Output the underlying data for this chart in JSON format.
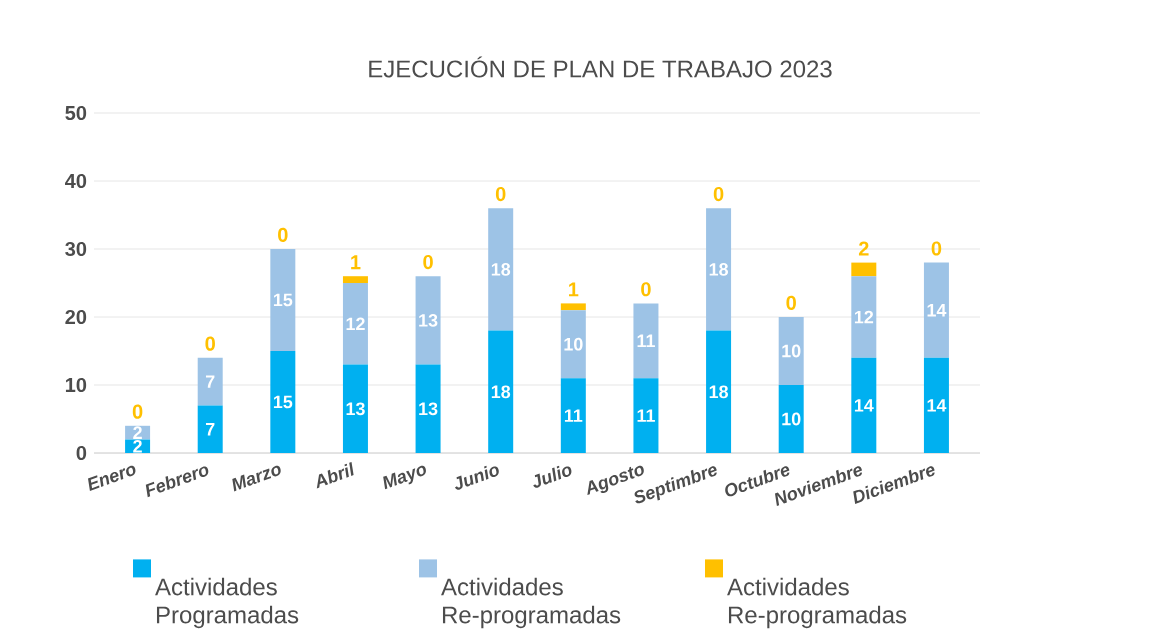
{
  "chart_data": {
    "type": "bar",
    "title": "EJECUCIÓN DE PLAN DE TRABAJO 2023",
    "categories": [
      "Enero",
      "Febrero",
      "Marzo",
      "Abril",
      "Mayo",
      "Junio",
      "Julio",
      "Agosto",
      "Septimbre",
      "Octubre",
      "Noviembre",
      "Diciembre"
    ],
    "stacked": true,
    "series": [
      {
        "name": "Actividades Programadas",
        "color": "#00b0f0",
        "values": [
          2,
          7,
          15,
          13,
          13,
          18,
          11,
          11,
          18,
          10,
          14,
          14
        ]
      },
      {
        "name": "Actividades Re-programadas",
        "color": "#9dc3e6",
        "values": [
          2,
          7,
          15,
          12,
          13,
          18,
          10,
          11,
          18,
          10,
          12,
          14
        ]
      },
      {
        "name": "Actividades Re-programadas",
        "color": "#ffc000",
        "values": [
          0,
          0,
          0,
          1,
          0,
          0,
          1,
          0,
          0,
          0,
          2,
          0
        ]
      }
    ],
    "ylim": [
      0,
      50
    ],
    "yticks": [
      0,
      10,
      20,
      30,
      40,
      50
    ],
    "grid": "y",
    "legend": "bottom",
    "data_labels": true
  }
}
